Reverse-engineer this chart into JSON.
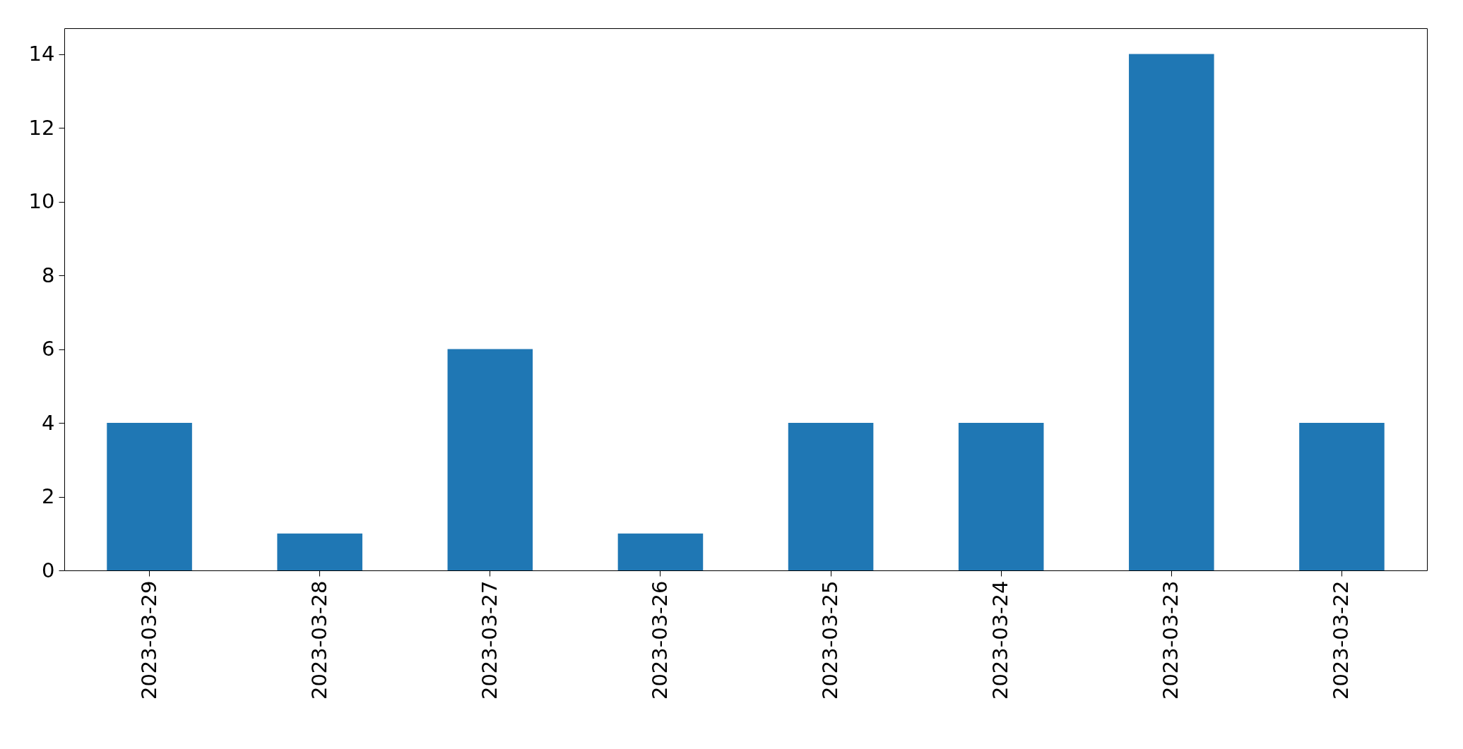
{
  "chart_data": {
    "type": "bar",
    "categories": [
      "2023-03-29",
      "2023-03-28",
      "2023-03-27",
      "2023-03-26",
      "2023-03-25",
      "2023-03-24",
      "2023-03-23",
      "2023-03-22"
    ],
    "values": [
      4,
      1,
      6,
      1,
      4,
      4,
      14,
      4
    ],
    "color": "#1f77b4",
    "ylim": [
      0,
      14.7
    ],
    "yticks": [
      0,
      2,
      4,
      6,
      8,
      10,
      12,
      14
    ],
    "grid": false
  }
}
